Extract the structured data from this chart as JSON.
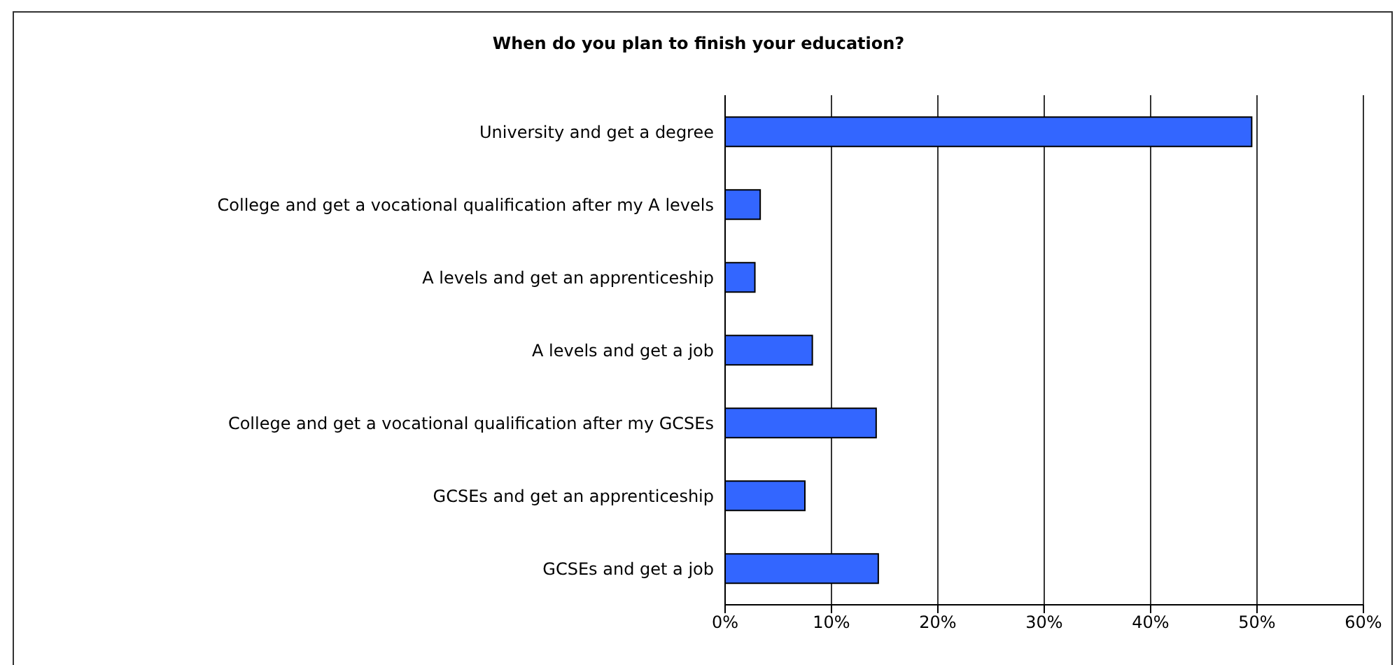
{
  "chart_data": {
    "type": "bar",
    "orientation": "horizontal",
    "title": "When do you plan to finish your education?",
    "categories": [
      "University and get a degree",
      "College and get a vocational qualification after my A levels",
      "A levels and get an apprenticeship",
      "A levels and get a job",
      "College and get a vocational qualification after my GCSEs",
      "GCSEs and get an apprenticeship",
      "GCSEs and get a job"
    ],
    "values": [
      49.5,
      3.3,
      2.8,
      8.2,
      14.2,
      7.5,
      14.4
    ],
    "color": "#3366ff",
    "xlim": [
      0,
      60
    ],
    "xticks": [
      {
        "value": 0,
        "label": "0%"
      },
      {
        "value": 10,
        "label": "10%"
      },
      {
        "value": 20,
        "label": "20%"
      },
      {
        "value": 30,
        "label": "30%"
      },
      {
        "value": 40,
        "label": "40%"
      },
      {
        "value": 50,
        "label": "50%"
      },
      {
        "value": 60,
        "label": "60%"
      }
    ],
    "grid": "x"
  }
}
